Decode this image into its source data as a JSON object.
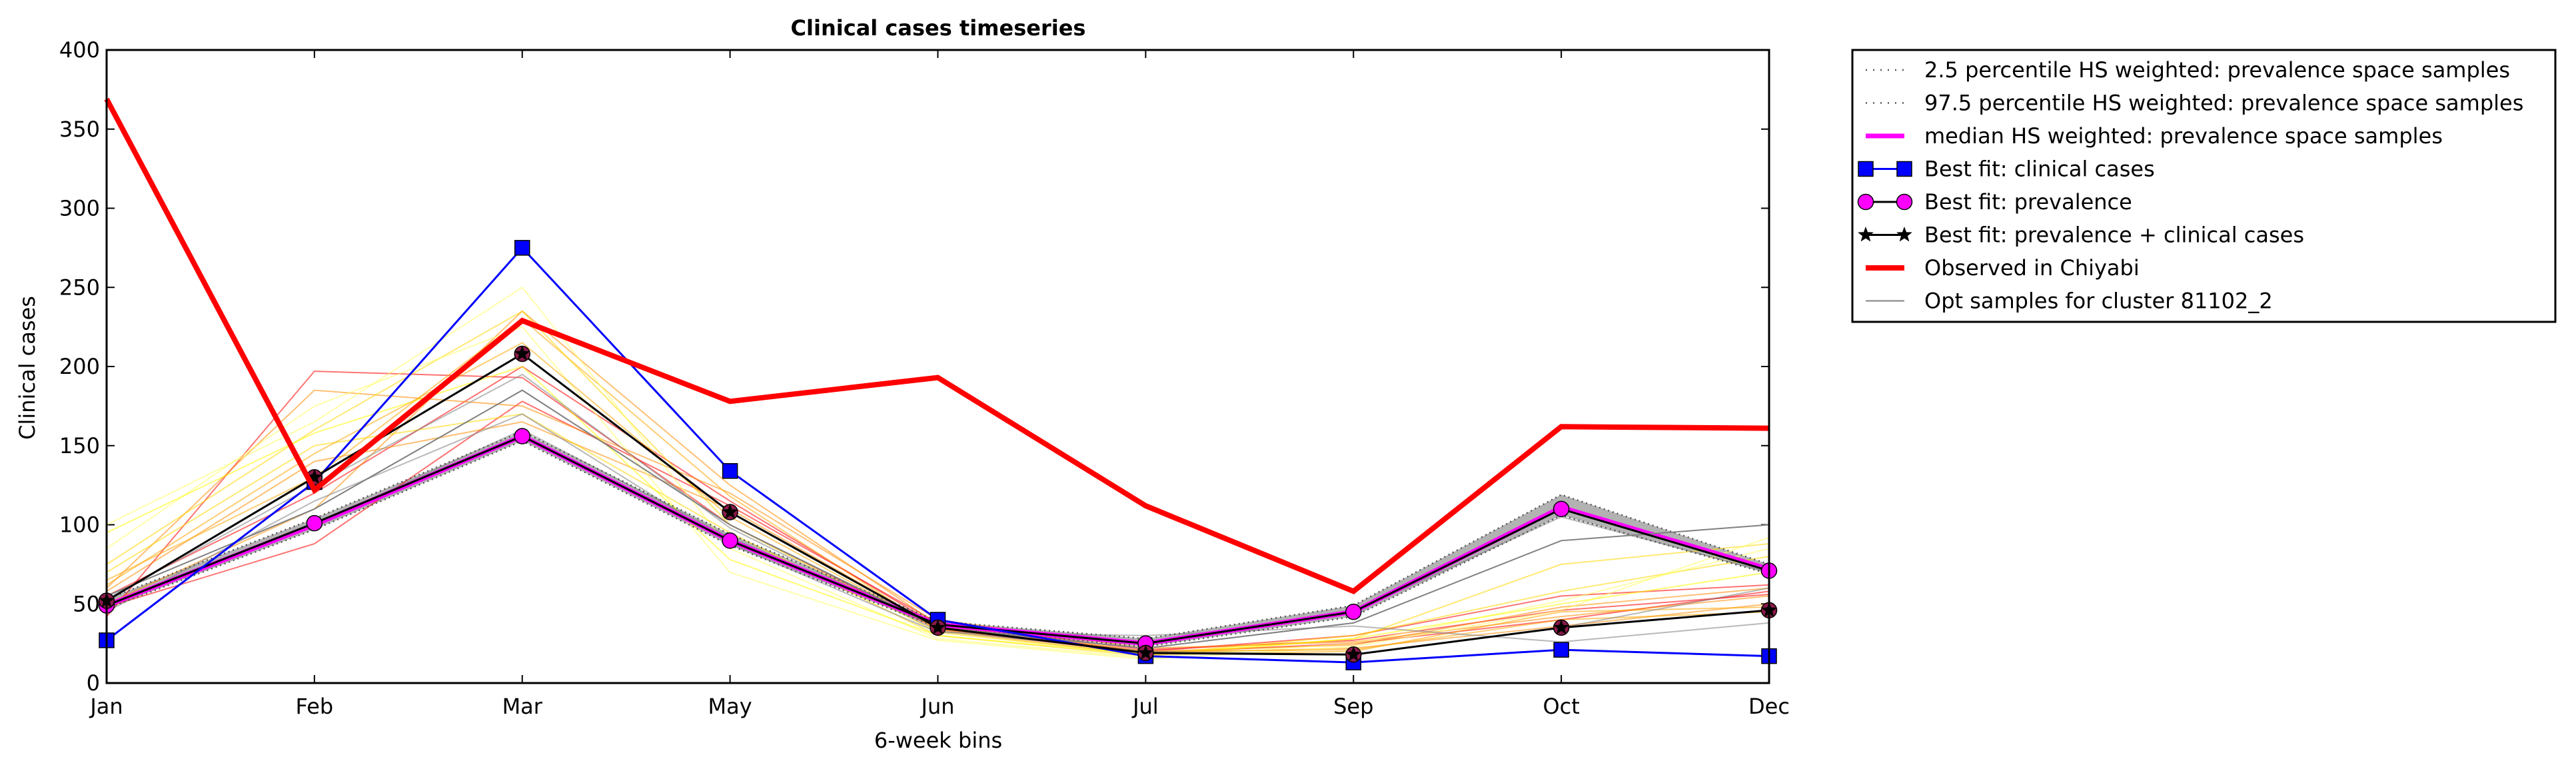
{
  "chart_data": {
    "type": "line",
    "title": "Clinical cases timeseries",
    "xlabel": "6-week bins",
    "ylabel": "Clinical cases",
    "categories": [
      "Jan",
      "Feb",
      "Mar",
      "May",
      "Jun",
      "Jul",
      "Sep",
      "Oct",
      "Dec"
    ],
    "ylim": [
      0,
      400
    ],
    "yticks": [
      0,
      50,
      100,
      150,
      200,
      250,
      300,
      350,
      400
    ],
    "grid": false,
    "legend_position": "outside-right-top",
    "band": {
      "lower": [
        47,
        97,
        153,
        87,
        35,
        23,
        42,
        106,
        69
      ],
      "upper": [
        53,
        104,
        159,
        94,
        39,
        28,
        49,
        119,
        75
      ],
      "color": "#aaaaaa"
    },
    "series": [
      {
        "name": "2.5 percentile HS weighted: prevalence space samples",
        "role": "p2_5",
        "color": "#555555",
        "style": "dotted",
        "values": [
          47,
          97,
          153,
          87,
          35,
          23,
          42,
          106,
          69
        ]
      },
      {
        "name": "97.5 percentile HS weighted: prevalence space samples",
        "role": "p97_5",
        "color": "#555555",
        "style": "dotted",
        "values": [
          53,
          104,
          159,
          94,
          39,
          28,
          49,
          119,
          75
        ]
      },
      {
        "name": "median HS weighted: prevalence space samples",
        "role": "median",
        "color": "#ff00ff",
        "style": "solid",
        "values": [
          49,
          100,
          156,
          90,
          37,
          25,
          45,
          111,
          72
        ]
      },
      {
        "name": "Best fit: clinical cases",
        "role": "bf_clin",
        "color": "#0000ff",
        "marker": "square",
        "values": [
          27,
          127,
          275,
          134,
          40,
          17,
          13,
          21,
          17
        ]
      },
      {
        "name": "Best fit: prevalence",
        "role": "bf_prev",
        "color": "#ff00ff",
        "marker": "circle",
        "values": [
          49,
          101,
          156,
          90,
          37,
          25,
          45,
          110,
          71
        ]
      },
      {
        "name": "Best fit: prevalence + clinical cases",
        "role": "bf_both",
        "color": "#000000",
        "marker": "star",
        "values": [
          52,
          130,
          208,
          108,
          35,
          19,
          18,
          35,
          46
        ]
      },
      {
        "name": "Observed in Chiyabi",
        "role": "observed",
        "color": "#ff0000",
        "style": "solid",
        "values": [
          369,
          122,
          229,
          178,
          193,
          112,
          58,
          162,
          161
        ]
      },
      {
        "name": "Opt samples for cluster 81102_2",
        "role": "opt",
        "color": "#808080",
        "style": "solid",
        "values": [
          55,
          110,
          185,
          100,
          35,
          22,
          38,
          90,
          100
        ]
      }
    ],
    "samples": [
      {
        "color": "#ff0000",
        "values": [
          42,
          197,
          193,
          100,
          34,
          19,
          25,
          40,
          58
        ]
      },
      {
        "color": "#ff0000",
        "values": [
          48,
          88,
          178,
          112,
          38,
          21,
          27,
          46,
          56
        ]
      },
      {
        "color": "#ff0000",
        "values": [
          55,
          120,
          200,
          115,
          36,
          20,
          30,
          55,
          62
        ]
      },
      {
        "color": "#ff8c00",
        "values": [
          60,
          185,
          175,
          120,
          40,
          22,
          26,
          42,
          55
        ]
      },
      {
        "color": "#ff8c00",
        "values": [
          50,
          110,
          235,
          125,
          37,
          20,
          24,
          48,
          60
        ]
      },
      {
        "color": "#ff8c00",
        "values": [
          58,
          140,
          165,
          110,
          35,
          19,
          22,
          36,
          50
        ]
      },
      {
        "color": "#ffa500",
        "values": [
          65,
          130,
          230,
          118,
          33,
          18,
          20,
          45,
          48
        ]
      },
      {
        "color": "#ffd700",
        "values": [
          70,
          150,
          170,
          95,
          30,
          17,
          28,
          75,
          88
        ]
      },
      {
        "color": "#ffd700",
        "values": [
          75,
          160,
          235,
          100,
          32,
          18,
          30,
          58,
          80
        ]
      },
      {
        "color": "#ffff66",
        "values": [
          100,
          165,
          250,
          85,
          28,
          16,
          25,
          52,
          85
        ]
      },
      {
        "color": "#ffff66",
        "values": [
          85,
          175,
          225,
          70,
          27,
          15,
          23,
          46,
          92
        ]
      },
      {
        "color": "#ffff00",
        "values": [
          95,
          158,
          200,
          78,
          30,
          18,
          28,
          50,
          70
        ]
      },
      {
        "color": "#ffa500",
        "values": [
          62,
          145,
          215,
          105,
          34,
          20,
          21,
          40,
          45
        ]
      },
      {
        "color": "#808080",
        "values": [
          53,
          125,
          195,
          98,
          33,
          20,
          18,
          35,
          60
        ]
      },
      {
        "color": "#808080",
        "values": [
          50,
          100,
          160,
          92,
          36,
          24,
          45,
          105,
          70
        ]
      },
      {
        "color": "#808080",
        "values": [
          45,
          115,
          170,
          88,
          32,
          30,
          36,
          26,
          38
        ]
      }
    ]
  }
}
